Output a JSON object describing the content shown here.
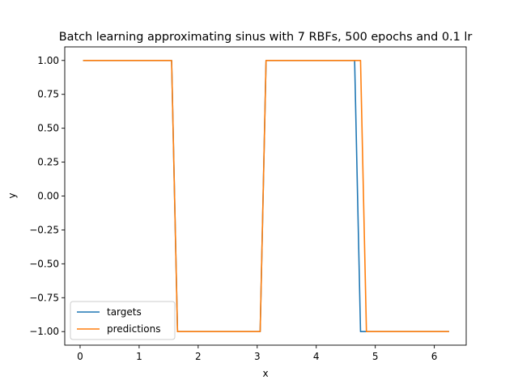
{
  "chart_data": {
    "type": "line",
    "title": "Batch learning approximating sinus with 7 RBFs, 500 epochs and 0.1 lr",
    "xlabel": "x",
    "ylabel": "y",
    "xlim": [
      -0.26,
      6.54
    ],
    "ylim": [
      -1.1,
      1.1
    ],
    "x_ticks": [
      0,
      1,
      2,
      3,
      4,
      5,
      6
    ],
    "x_tick_labels": [
      "0",
      "1",
      "2",
      "3",
      "4",
      "5",
      "6"
    ],
    "y_ticks": [
      1.0,
      0.75,
      0.5,
      0.25,
      0.0,
      -0.25,
      -0.5,
      -0.75,
      -1.0
    ],
    "y_tick_labels": [
      "1.00",
      "0.75",
      "0.50",
      "0.25",
      "0.00",
      "−0.25",
      "−0.50",
      "−0.75",
      "−1.00"
    ],
    "grid": false,
    "legend_position": "lower-left",
    "series": [
      {
        "name": "targets",
        "color": "#1f77b4",
        "x": [
          0.05,
          1.55,
          1.65,
          3.05,
          3.15,
          4.65,
          4.75,
          6.25
        ],
        "y": [
          1,
          1,
          -1,
          -1,
          1,
          1,
          -1,
          -1
        ]
      },
      {
        "name": "predictions",
        "color": "#ff7f0e",
        "x": [
          0.05,
          1.55,
          1.65,
          3.05,
          3.15,
          4.75,
          4.85,
          6.25
        ],
        "y": [
          1,
          1,
          -1,
          -1,
          1,
          1,
          -1,
          -1
        ]
      }
    ]
  }
}
